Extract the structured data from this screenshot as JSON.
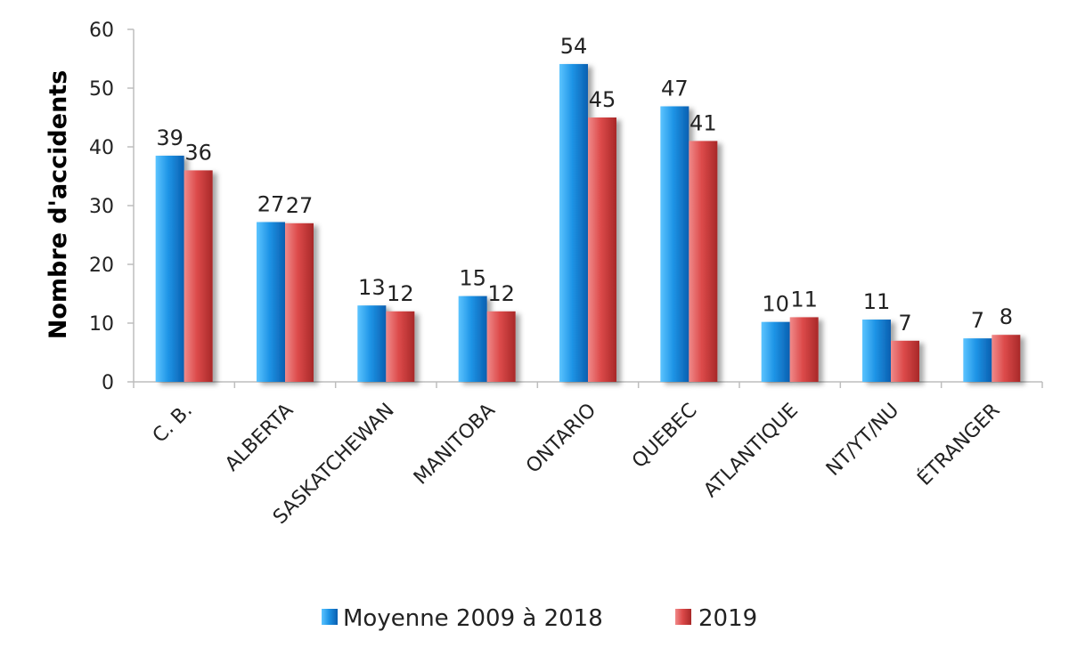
{
  "chart_data": {
    "type": "bar",
    "title": "",
    "xlabel": "",
    "ylabel": "Nombre d'accidents",
    "ylim": [
      0,
      60
    ],
    "yticks": [
      0,
      10,
      20,
      30,
      40,
      50,
      60
    ],
    "grid": false,
    "legend_position": "bottom",
    "categories": [
      "C. B.",
      "ALBERTA",
      "SASKATCHEWAN",
      "MANITOBA",
      "ONTARIO",
      "QUEBEC",
      "ATLANTIQUE",
      "NT/YT/NU",
      "ÉTRANGER"
    ],
    "series": [
      {
        "name": "Moyenne 2009 à 2018",
        "color": "#1E90E0",
        "values": [
          38.5,
          27.2,
          13,
          14.6,
          54.1,
          46.9,
          10.2,
          10.6,
          7.4
        ],
        "labels": [
          "39",
          "27",
          "13",
          "15",
          "54",
          "47",
          "10",
          "11",
          "7"
        ]
      },
      {
        "name": "2019",
        "color": "#E05050",
        "values": [
          36,
          27,
          12,
          12,
          45,
          41,
          11,
          7,
          8
        ],
        "labels": [
          "36",
          "27",
          "12",
          "12",
          "45",
          "41",
          "11",
          "7",
          "8"
        ]
      }
    ]
  }
}
